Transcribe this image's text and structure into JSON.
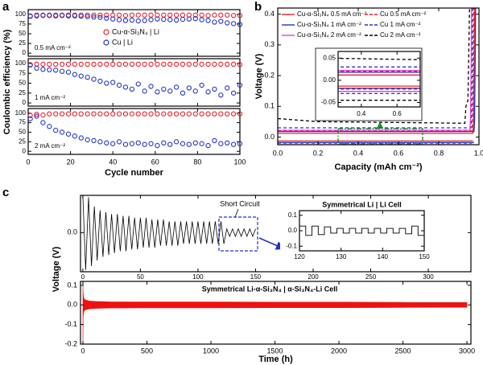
{
  "chart_data": [
    {
      "type": "scatter",
      "panel": "a",
      "xlabel": "Cycle number",
      "ylabel": "Coulombic efficiency (%)",
      "xlim": [
        0,
        100
      ],
      "xticks": [
        0,
        20,
        40,
        60,
        80,
        100
      ],
      "legend": [
        {
          "name": "Cu-α-Si₃N₄ | Li",
          "color": "#e8202a"
        },
        {
          "name": "Cu | Li",
          "color": "#2233c4"
        }
      ],
      "x": [
        1,
        4,
        7,
        10,
        13,
        16,
        19,
        22,
        25,
        28,
        31,
        34,
        37,
        40,
        43,
        46,
        49,
        52,
        55,
        58,
        61,
        64,
        67,
        70,
        73,
        76,
        79,
        82,
        85,
        88,
        91,
        94,
        97,
        100
      ],
      "subplots": [
        {
          "label": "0.5 mA cm⁻²",
          "ylim": [
            -8,
            112
          ],
          "yticks": [
            0,
            25,
            50,
            75,
            100
          ],
          "series": [
            {
              "color": "#e8202a",
              "values": [
                96,
                98,
                98,
                98,
                98,
                98,
                98,
                98,
                98,
                98,
                98,
                98,
                98,
                98,
                98,
                97,
                98,
                98,
                98,
                98,
                98,
                98,
                98,
                98,
                98,
                98,
                98,
                98,
                97,
                98,
                98,
                98,
                97,
                97
              ]
            },
            {
              "color": "#2233c4",
              "values": [
                95,
                96,
                97,
                97,
                96,
                97,
                96,
                96,
                95,
                94,
                93,
                92,
                90,
                88,
                86,
                84,
                85,
                83,
                84,
                86,
                88,
                87,
                86,
                85,
                87,
                88,
                89,
                86,
                84,
                80,
                82,
                78,
                76,
                74
              ]
            }
          ]
        },
        {
          "label": "1 mA cm⁻²",
          "ylim": [
            -8,
            112
          ],
          "yticks": [
            0,
            25,
            50,
            75,
            100
          ],
          "series": [
            {
              "color": "#e8202a",
              "values": [
                97,
                98,
                98,
                98,
                98,
                98,
                98,
                98,
                98,
                98,
                98,
                98,
                98,
                98,
                98,
                98,
                98,
                98,
                98,
                98,
                98,
                98,
                98,
                98,
                98,
                98,
                98,
                98,
                98,
                98,
                98,
                98,
                98,
                97
              ]
            },
            {
              "color": "#2233c4",
              "values": [
                96,
                88,
                85,
                84,
                83,
                80,
                78,
                72,
                68,
                65,
                60,
                55,
                50,
                52,
                45,
                40,
                35,
                48,
                30,
                42,
                28,
                35,
                30,
                40,
                25,
                38,
                30,
                45,
                28,
                35,
                20,
                38,
                25,
                45
              ]
            }
          ]
        },
        {
          "label": "2 mA cm⁻²",
          "ylim": [
            -8,
            112
          ],
          "yticks": [
            0,
            25,
            50,
            75,
            100
          ],
          "series": [
            {
              "color": "#e8202a",
              "values": [
                94,
                97,
                95,
                98,
                98,
                98,
                98,
                98,
                98,
                98,
                98,
                98,
                98,
                98,
                98,
                98,
                98,
                98,
                98,
                98,
                98,
                98,
                98,
                98,
                98,
                98,
                98,
                98,
                98,
                98,
                98,
                98,
                98,
                98
              ]
            },
            {
              "color": "#2233c4",
              "values": [
                85,
                92,
                75,
                65,
                55,
                50,
                45,
                40,
                35,
                30,
                28,
                25,
                22,
                20,
                25,
                18,
                20,
                22,
                18,
                20,
                15,
                22,
                18,
                25,
                20,
                18,
                22,
                20,
                15,
                28,
                20,
                22,
                18,
                20
              ]
            }
          ]
        }
      ]
    },
    {
      "type": "line",
      "panel": "b",
      "xlabel": "Capacity (mAh cm⁻²)",
      "ylabel": "Voltage (V)",
      "xlim": [
        0,
        1
      ],
      "ylim": [
        -0.025,
        0.42
      ],
      "xticks": [
        {
          "value": 0,
          "label": "0.0"
        },
        0.2,
        0.4,
        0.6,
        0.8,
        {
          "value": 1,
          "label": "1.0"
        }
      ],
      "yticks": [
        {
          "value": 0,
          "label": "0.0"
        },
        0.1,
        0.2,
        0.3,
        0.4
      ],
      "series": [
        {
          "name": "Cu-α-Si₃N₄ 0.5 mA cm⁻²",
          "color": "#e8202a",
          "dash": false,
          "x": [
            0,
            0.97,
            null,
            0,
            0.97,
            0.973,
            0.976,
            0.978
          ],
          "values": [
            -0.013,
            -0.013,
            null,
            0.012,
            0.012,
            0.05,
            0.25,
            0.42
          ]
        },
        {
          "name": "Cu 0.5 mA cm⁻²",
          "color": "#e8202a",
          "dash": true,
          "x": [
            0,
            0.965,
            null,
            0,
            0.965,
            0.968,
            0.971,
            0.973
          ],
          "values": [
            -0.02,
            -0.02,
            null,
            0.02,
            0.02,
            0.06,
            0.25,
            0.42
          ]
        },
        {
          "name": "Cu-α-Si₃N₄ 1 mA cm⁻²",
          "color": "#2233c4",
          "dash": false,
          "x": [
            0,
            0.975,
            null,
            0,
            0.975,
            0.978,
            0.981,
            0.983
          ],
          "values": [
            -0.018,
            -0.018,
            null,
            0.018,
            0.018,
            0.05,
            0.25,
            0.42
          ]
        },
        {
          "name": "Cu 1 mA cm⁻²",
          "color": "#2233c4",
          "dash": true,
          "x": [
            0,
            0.96,
            null,
            0,
            0.96,
            0.963,
            0.966,
            0.968
          ],
          "values": [
            -0.03,
            -0.03,
            null,
            0.03,
            0.03,
            0.07,
            0.25,
            0.42
          ]
        },
        {
          "name": "Cu-α-Si₃N₄ 2 mA cm⁻²",
          "color": "#e040e0",
          "dash": false,
          "x": [
            0,
            0.955,
            null,
            0,
            0.955,
            0.958,
            0.961,
            0.963
          ],
          "values": [
            -0.025,
            -0.025,
            null,
            0.022,
            0.022,
            0.06,
            0.25,
            0.42
          ]
        },
        {
          "name": "Cu 2 mA cm⁻²",
          "color": "#000000",
          "dash": true,
          "x": [
            0,
            0.95,
            null,
            0,
            0.2,
            0.93,
            0.935,
            0.945,
            0.95,
            0.953
          ],
          "values": [
            -0.045,
            -0.045,
            null,
            0.06,
            0.05,
            0.045,
            0.1,
            0.12,
            0.3,
            0.42
          ]
        }
      ],
      "inset": {
        "xlim": [
          0.27,
          0.73
        ],
        "ylim": [
          -0.06,
          0.065
        ],
        "xticks": [
          0.4,
          0.6
        ],
        "yticks": [
          -0.05,
          {
            "value": 0,
            "label": "0.00"
          },
          0.05
        ]
      }
    },
    {
      "type": "voltage",
      "panel": "c",
      "ylabel": "Voltage (V)",
      "xlabel": "Time (h)",
      "top": {
        "xlim": [
          -2,
          337
        ],
        "ylim": [
          -0.21,
          0.2
        ],
        "xticks": [
          0,
          50,
          100,
          150,
          200,
          250,
          300
        ],
        "yticks": [
          {
            "value": 0,
            "label": "0.0"
          }
        ],
        "color": "#000000",
        "annotation": "Short Circuit",
        "x": [
          0,
          2.5,
          5,
          7.5,
          10,
          12.5,
          15,
          17.5,
          20,
          22.5,
          25,
          27.5,
          30,
          32.5,
          35,
          37.5,
          40,
          42.5,
          45,
          47.5,
          50,
          52.5,
          55,
          57.5,
          60,
          62.5,
          65,
          67.5,
          70,
          72.5,
          75,
          77.5,
          80,
          82.5,
          85,
          87.5,
          90,
          92.5,
          95,
          97.5,
          100,
          102.5,
          105,
          107.5,
          110,
          112.5,
          115,
          117.5,
          120,
          122.5,
          125,
          127.5,
          130,
          132.5,
          135,
          137.5,
          140,
          142.5,
          145,
          147.5,
          150
        ],
        "values": [
          0.2,
          -0.2,
          0.19,
          -0.18,
          0.14,
          -0.15,
          0.12,
          -0.13,
          0.11,
          -0.12,
          0.1,
          -0.11,
          0.1,
          -0.1,
          0.09,
          -0.1,
          0.09,
          -0.09,
          0.08,
          -0.09,
          0.08,
          -0.08,
          0.08,
          -0.08,
          0.07,
          -0.08,
          0.07,
          -0.07,
          0.07,
          -0.07,
          0.06,
          -0.07,
          0.06,
          -0.07,
          0.06,
          -0.06,
          0.06,
          -0.06,
          0.06,
          -0.06,
          0.06,
          -0.06,
          0.06,
          -0.06,
          0.06,
          -0.06,
          0.06,
          -0.06,
          0.06,
          -0.06,
          0.02,
          -0.02,
          0.02,
          -0.02,
          0.02,
          -0.02,
          0.02,
          -0.02,
          0.02,
          -0.02,
          0.02
        ],
        "inset": {
          "title": "Symmetrical Li | Li Cell",
          "xlim": [
            120,
            150
          ],
          "ylim": [
            -0.13,
            0.13
          ],
          "xticks": [
            120,
            130,
            140,
            150
          ],
          "yticks": [
            -0.1,
            {
              "value": 0,
              "label": "0.0"
            },
            0.1
          ],
          "x": [
            120,
            121.5,
            121.5,
            123,
            123,
            124.5,
            124.5,
            126,
            126,
            127.5,
            127.5,
            129,
            129,
            130.5,
            130.5,
            132,
            132,
            133.5,
            133.5,
            135,
            135,
            136.5,
            136.5,
            138,
            138,
            139.5,
            139.5,
            141,
            141,
            142.5,
            142.5,
            144,
            144,
            145.5,
            145.5,
            147,
            147,
            148.5,
            148.5,
            150
          ],
          "values": [
            0.03,
            0.03,
            -0.03,
            -0.03,
            0.03,
            0.03,
            -0.025,
            -0.025,
            0.025,
            0.025,
            -0.015,
            -0.015,
            0.015,
            0.015,
            -0.015,
            -0.015,
            0.015,
            0.015,
            -0.015,
            -0.015,
            0.015,
            0.015,
            -0.015,
            -0.015,
            0.015,
            0.015,
            -0.015,
            -0.015,
            0.015,
            0.015,
            -0.015,
            -0.015,
            0.015,
            0.015,
            -0.02,
            -0.02,
            0.03,
            0.03,
            -0.03,
            -0.03
          ]
        }
      },
      "bottom": {
        "title": "Symmetrical Li-α-Si₃N₄ | α-Si₃N₄-Li Cell",
        "xlim": [
          -19,
          3031
        ],
        "ylim": [
          -0.2,
          0.12
        ],
        "xticks": [
          0,
          500,
          1000,
          1500,
          2000,
          2500,
          3000
        ],
        "yticks": [
          0.1,
          {
            "value": 0,
            "label": "0.0"
          },
          -0.1,
          -0.2
        ],
        "color": "#ee1111",
        "x": [
          0,
          2,
          5,
          10,
          20,
          50,
          100,
          200,
          500,
          1000,
          1500,
          2000,
          2500,
          3000
        ],
        "upper": [
          0.1,
          0.06,
          0.04,
          0.03,
          0.025,
          0.02,
          0.018,
          0.016,
          0.015,
          0.015,
          0.014,
          0.014,
          0.013,
          0.012
        ],
        "lower": [
          -0.2,
          -0.06,
          -0.04,
          -0.03,
          -0.025,
          -0.02,
          -0.018,
          -0.016,
          -0.015,
          -0.015,
          -0.014,
          -0.014,
          -0.013,
          -0.012
        ]
      }
    }
  ]
}
